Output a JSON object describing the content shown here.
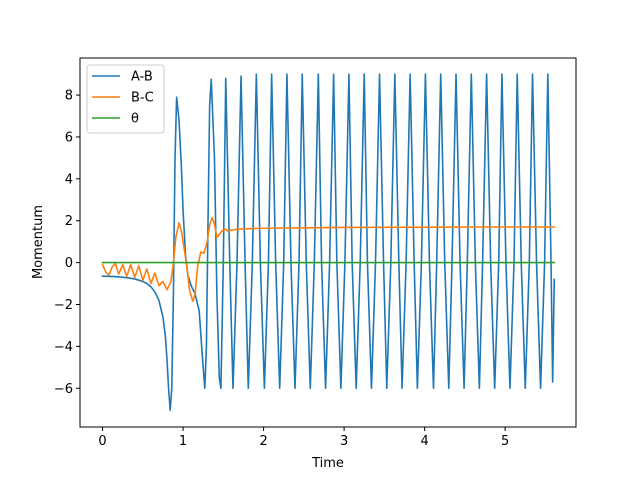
{
  "chart_data": {
    "type": "line",
    "title": "",
    "xlabel": "Time",
    "ylabel": "Momentum",
    "xlim": [
      -0.28,
      5.88
    ],
    "ylim": [
      -7.85,
      9.77
    ],
    "xticks": [
      0,
      1,
      2,
      3,
      4,
      5
    ],
    "yticks": [
      -6,
      -4,
      -2,
      0,
      2,
      4,
      6,
      8
    ],
    "grid": false,
    "legend_position": "top-left",
    "series": [
      {
        "name": "A-B",
        "color": "#1f77b4",
        "points": [
          [
            0.0,
            -0.65
          ],
          [
            0.1,
            -0.66
          ],
          [
            0.2,
            -0.68
          ],
          [
            0.3,
            -0.72
          ],
          [
            0.4,
            -0.78
          ],
          [
            0.5,
            -0.9
          ],
          [
            0.55,
            -1.0
          ],
          [
            0.6,
            -1.15
          ],
          [
            0.65,
            -1.4
          ],
          [
            0.7,
            -1.8
          ],
          [
            0.75,
            -2.6
          ],
          [
            0.78,
            -3.5
          ],
          [
            0.8,
            -4.6
          ],
          [
            0.82,
            -6.0
          ],
          [
            0.84,
            -7.05
          ],
          [
            0.86,
            -6.0
          ],
          [
            0.88,
            -1.5
          ],
          [
            0.9,
            5.0
          ],
          [
            0.92,
            7.9
          ],
          [
            0.95,
            6.8
          ],
          [
            0.98,
            4.5
          ],
          [
            1.0,
            2.5
          ],
          [
            1.03,
            0.4
          ],
          [
            1.06,
            -0.6
          ],
          [
            1.1,
            -1.1
          ],
          [
            1.15,
            -1.5
          ],
          [
            1.2,
            -2.3
          ],
          [
            1.24,
            -4.5
          ],
          [
            1.27,
            -6.0
          ],
          [
            1.29,
            -4.0
          ],
          [
            1.31,
            2.0
          ],
          [
            1.33,
            7.5
          ],
          [
            1.35,
            8.75
          ],
          [
            1.39,
            5.0
          ],
          [
            1.42,
            -1.5
          ],
          [
            1.45,
            -5.5
          ],
          [
            1.47,
            -6.0
          ],
          [
            1.5,
            0.0
          ],
          [
            1.53,
            8.8
          ],
          [
            1.58,
            0.0
          ],
          [
            1.62,
            -6.0
          ],
          [
            1.67,
            0.0
          ],
          [
            1.72,
            8.9
          ],
          [
            1.77,
            0.0
          ],
          [
            1.81,
            -6.0
          ],
          [
            1.86,
            0.0
          ],
          [
            1.91,
            9.0
          ],
          [
            1.96,
            0.0
          ],
          [
            2.01,
            -6.0
          ],
          [
            2.06,
            0.0
          ],
          [
            2.1,
            9.0
          ],
          [
            2.15,
            0.0
          ],
          [
            2.2,
            -6.0
          ],
          [
            2.25,
            0.0
          ],
          [
            2.29,
            9.0
          ],
          [
            2.34,
            0.0
          ],
          [
            2.39,
            -6.0
          ],
          [
            2.44,
            0.0
          ],
          [
            2.48,
            9.0
          ],
          [
            2.53,
            0.0
          ],
          [
            2.58,
            -6.0
          ],
          [
            2.63,
            0.0
          ],
          [
            2.68,
            9.0
          ],
          [
            2.72,
            0.0
          ],
          [
            2.77,
            -6.0
          ],
          [
            2.82,
            0.0
          ],
          [
            2.87,
            9.0
          ],
          [
            2.91,
            0.0
          ],
          [
            2.96,
            -6.0
          ],
          [
            3.01,
            0.0
          ],
          [
            3.06,
            9.0
          ],
          [
            3.1,
            0.0
          ],
          [
            3.15,
            -6.0
          ],
          [
            3.2,
            0.0
          ],
          [
            3.25,
            9.0
          ],
          [
            3.29,
            0.0
          ],
          [
            3.34,
            -6.0
          ],
          [
            3.39,
            0.0
          ],
          [
            3.44,
            9.0
          ],
          [
            3.49,
            0.0
          ],
          [
            3.53,
            -6.0
          ],
          [
            3.58,
            0.0
          ],
          [
            3.63,
            9.0
          ],
          [
            3.68,
            0.0
          ],
          [
            3.72,
            -6.0
          ],
          [
            3.77,
            0.0
          ],
          [
            3.82,
            9.0
          ],
          [
            3.87,
            0.0
          ],
          [
            3.91,
            -6.0
          ],
          [
            3.96,
            0.0
          ],
          [
            4.01,
            9.0
          ],
          [
            4.06,
            0.0
          ],
          [
            4.11,
            -6.0
          ],
          [
            4.15,
            0.0
          ],
          [
            4.2,
            9.0
          ],
          [
            4.25,
            0.0
          ],
          [
            4.3,
            -6.0
          ],
          [
            4.34,
            0.0
          ],
          [
            4.39,
            9.0
          ],
          [
            4.44,
            0.0
          ],
          [
            4.49,
            -6.0
          ],
          [
            4.53,
            0.0
          ],
          [
            4.58,
            9.0
          ],
          [
            4.63,
            0.0
          ],
          [
            4.68,
            -6.0
          ],
          [
            4.72,
            0.0
          ],
          [
            4.77,
            9.0
          ],
          [
            4.82,
            0.0
          ],
          [
            4.87,
            -6.0
          ],
          [
            4.92,
            0.0
          ],
          [
            4.96,
            9.0
          ],
          [
            5.01,
            0.0
          ],
          [
            5.06,
            -6.0
          ],
          [
            5.11,
            0.0
          ],
          [
            5.15,
            9.0
          ],
          [
            5.2,
            0.0
          ],
          [
            5.25,
            -6.0
          ],
          [
            5.3,
            0.0
          ],
          [
            5.34,
            9.0
          ],
          [
            5.39,
            0.0
          ],
          [
            5.44,
            -6.0
          ],
          [
            5.49,
            0.0
          ],
          [
            5.53,
            9.0
          ],
          [
            5.57,
            0.0
          ],
          [
            5.59,
            -5.7
          ],
          [
            5.61,
            -0.8
          ]
        ]
      },
      {
        "name": "B-C",
        "color": "#ff7f0e",
        "points": [
          [
            0.0,
            -0.1
          ],
          [
            0.04,
            -0.45
          ],
          [
            0.08,
            -0.6
          ],
          [
            0.12,
            -0.2
          ],
          [
            0.16,
            -0.05
          ],
          [
            0.2,
            -0.55
          ],
          [
            0.25,
            -0.1
          ],
          [
            0.3,
            -0.65
          ],
          [
            0.35,
            -0.1
          ],
          [
            0.4,
            -0.7
          ],
          [
            0.45,
            -0.15
          ],
          [
            0.5,
            -0.85
          ],
          [
            0.55,
            -0.3
          ],
          [
            0.6,
            -1.0
          ],
          [
            0.65,
            -0.5
          ],
          [
            0.7,
            -1.1
          ],
          [
            0.75,
            -0.9
          ],
          [
            0.8,
            -1.3
          ],
          [
            0.85,
            -0.9
          ],
          [
            0.88,
            0.0
          ],
          [
            0.91,
            1.2
          ],
          [
            0.95,
            1.9
          ],
          [
            0.98,
            1.5
          ],
          [
            1.02,
            0.5
          ],
          [
            1.05,
            -0.3
          ],
          [
            1.08,
            -1.3
          ],
          [
            1.12,
            -1.85
          ],
          [
            1.15,
            -1.5
          ],
          [
            1.18,
            -0.2
          ],
          [
            1.22,
            0.5
          ],
          [
            1.26,
            0.45
          ],
          [
            1.3,
            1.0
          ],
          [
            1.33,
            1.8
          ],
          [
            1.36,
            2.15
          ],
          [
            1.39,
            1.85
          ],
          [
            1.42,
            1.2
          ],
          [
            1.45,
            1.35
          ],
          [
            1.48,
            1.5
          ],
          [
            1.52,
            1.6
          ],
          [
            1.56,
            1.5
          ],
          [
            1.6,
            1.55
          ],
          [
            1.7,
            1.6
          ],
          [
            1.8,
            1.62
          ],
          [
            2.0,
            1.64
          ],
          [
            2.5,
            1.66
          ],
          [
            3.0,
            1.68
          ],
          [
            4.0,
            1.69
          ],
          [
            5.0,
            1.7
          ],
          [
            5.61,
            1.7
          ]
        ]
      },
      {
        "name": "θ",
        "color": "#2ca02c",
        "points": [
          [
            0.0,
            0.0
          ],
          [
            5.61,
            0.0
          ]
        ]
      }
    ]
  }
}
